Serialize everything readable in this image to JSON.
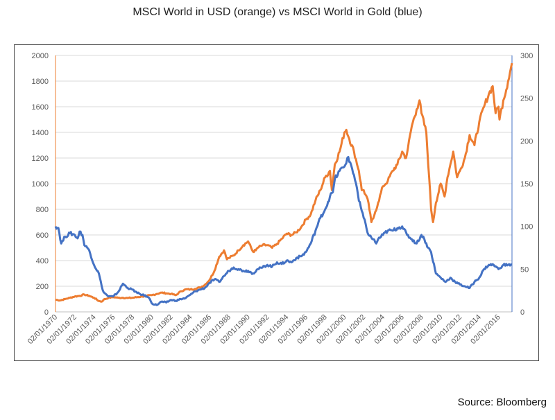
{
  "source": "Source: Bloomberg",
  "colors": {
    "usd": "#ED7D31",
    "gold": "#4472C4",
    "grid": "#D9D9D9",
    "axis": "#BFBFBF"
  },
  "chart_data": {
    "type": "line",
    "title": "MSCI World in USD (orange) vs MSCI World in Gold (blue)",
    "xlabel": "",
    "ylabel": "",
    "xlim": [
      1970.0,
      2017.4
    ],
    "ylim_left": [
      0,
      2000
    ],
    "ylim_right": [
      0,
      300
    ],
    "yticks_left": [
      0,
      200,
      400,
      600,
      800,
      1000,
      1200,
      1400,
      1600,
      1800,
      2000
    ],
    "yticks_right": [
      0,
      50,
      100,
      150,
      200,
      250,
      300
    ],
    "xticks": [
      "02/01/1970",
      "02/01/1972",
      "02/01/1974",
      "02/01/1976",
      "02/01/1978",
      "02/01/1980",
      "02/01/1982",
      "02/01/1984",
      "02/01/1986",
      "02/01/1988",
      "02/01/1990",
      "02/01/1992",
      "02/01/1994",
      "02/01/1996",
      "02/01/1998",
      "02/01/2000",
      "02/01/2002",
      "02/01/2004",
      "02/01/2006",
      "02/01/2008",
      "02/01/2010",
      "02/01/2012",
      "02/01/2014",
      "02/01/2016"
    ],
    "grid": true,
    "legend": "none",
    "series": [
      {
        "axis": "left",
        "color": "#ED7D31",
        "x": [
          1970.0,
          1970.5,
          1971.0,
          1971.5,
          1972.0,
          1972.5,
          1973.0,
          1973.5,
          1974.0,
          1974.5,
          1974.8,
          1975.0,
          1975.5,
          1976.0,
          1976.5,
          1977.0,
          1977.5,
          1978.0,
          1978.5,
          1979.0,
          1979.5,
          1980.0,
          1980.5,
          1981.0,
          1981.5,
          1982.0,
          1982.5,
          1983.0,
          1983.5,
          1984.0,
          1984.5,
          1985.0,
          1985.5,
          1986.0,
          1986.5,
          1987.0,
          1987.5,
          1987.8,
          1988.0,
          1988.5,
          1989.0,
          1989.5,
          1990.0,
          1990.5,
          1990.8,
          1991.0,
          1991.5,
          1992.0,
          1992.5,
          1993.0,
          1993.5,
          1994.0,
          1994.5,
          1995.0,
          1995.5,
          1996.0,
          1996.5,
          1997.0,
          1997.5,
          1998.0,
          1998.5,
          1998.7,
          1999.0,
          1999.5,
          2000.0,
          2000.2,
          2000.5,
          2001.0,
          2001.5,
          2001.8,
          2002.0,
          2002.5,
          2002.8,
          2003.0,
          2003.2,
          2003.5,
          2004.0,
          2004.5,
          2005.0,
          2005.5,
          2006.0,
          2006.4,
          2006.6,
          2007.0,
          2007.5,
          2007.8,
          2008.0,
          2008.5,
          2008.8,
          2009.0,
          2009.2,
          2009.5,
          2010.0,
          2010.4,
          2010.7,
          2011.0,
          2011.3,
          2011.7,
          2012.0,
          2012.5,
          2013.0,
          2013.5,
          2014.0,
          2014.5,
          2015.0,
          2015.4,
          2015.7,
          2016.0,
          2016.1,
          2016.5,
          2017.0,
          2017.4
        ],
        "values": [
          95,
          90,
          100,
          110,
          120,
          125,
          135,
          125,
          110,
          85,
          80,
          95,
          110,
          115,
          110,
          110,
          108,
          110,
          115,
          120,
          125,
          130,
          140,
          150,
          145,
          140,
          130,
          160,
          175,
          175,
          180,
          190,
          210,
          250,
          320,
          430,
          480,
          410,
          420,
          440,
          480,
          520,
          550,
          470,
          480,
          500,
          520,
          520,
          500,
          530,
          570,
          610,
          600,
          620,
          660,
          720,
          760,
          870,
          950,
          1050,
          1100,
          950,
          1150,
          1250,
          1400,
          1420,
          1350,
          1250,
          1100,
          950,
          950,
          850,
          700,
          730,
          780,
          850,
          980,
          1020,
          1100,
          1150,
          1250,
          1200,
          1280,
          1450,
          1580,
          1650,
          1550,
          1400,
          1050,
          800,
          700,
          850,
          1000,
          900,
          1050,
          1150,
          1250,
          1050,
          1100,
          1200,
          1380,
          1300,
          1480,
          1600,
          1700,
          1760,
          1550,
          1600,
          1500,
          1650,
          1800,
          1940
        ]
      },
      {
        "axis": "right",
        "color": "#4472C4",
        "x": [
          1970.0,
          1970.3,
          1970.6,
          1971.0,
          1971.5,
          1972.0,
          1972.3,
          1972.5,
          1972.8,
          1973.0,
          1973.3,
          1973.5,
          1974.0,
          1974.5,
          1974.8,
          1975.0,
          1975.5,
          1976.0,
          1976.5,
          1977.0,
          1977.5,
          1978.0,
          1978.5,
          1979.0,
          1979.5,
          1979.8,
          1980.0,
          1980.5,
          1981.0,
          1981.5,
          1982.0,
          1982.5,
          1983.0,
          1983.5,
          1984.0,
          1984.5,
          1985.0,
          1985.5,
          1986.0,
          1986.5,
          1987.0,
          1987.5,
          1988.0,
          1988.5,
          1989.0,
          1989.5,
          1990.0,
          1990.5,
          1991.0,
          1991.5,
          1992.0,
          1992.5,
          1993.0,
          1993.5,
          1994.0,
          1994.5,
          1995.0,
          1995.5,
          1996.0,
          1996.5,
          1997.0,
          1997.5,
          1998.0,
          1998.5,
          1998.8,
          1999.0,
          1999.5,
          2000.0,
          2000.3,
          2000.6,
          2001.0,
          2001.3,
          2001.5,
          2002.0,
          2002.5,
          2003.0,
          2003.3,
          2003.5,
          2004.0,
          2004.5,
          2005.0,
          2005.5,
          2006.0,
          2006.5,
          2007.0,
          2007.5,
          2008.0,
          2008.3,
          2008.7,
          2009.0,
          2009.5,
          2010.0,
          2010.5,
          2011.0,
          2011.5,
          2012.0,
          2012.5,
          2013.0,
          2013.5,
          2014.0,
          2014.5,
          2015.0,
          2015.5,
          2016.0,
          2016.5,
          2017.0,
          2017.4
        ],
        "values": [
          100,
          98,
          80,
          88,
          92,
          90,
          86,
          94,
          90,
          78,
          75,
          72,
          55,
          45,
          30,
          23,
          18,
          18,
          23,
          33,
          28,
          26,
          22,
          20,
          18,
          15,
          10,
          8,
          12,
          11,
          14,
          13,
          15,
          16,
          20,
          24,
          26,
          28,
          34,
          38,
          35,
          42,
          48,
          52,
          50,
          48,
          48,
          45,
          50,
          52,
          55,
          53,
          58,
          56,
          60,
          58,
          63,
          65,
          70,
          80,
          95,
          110,
          120,
          135,
          140,
          155,
          165,
          170,
          180,
          175,
          160,
          145,
          130,
          110,
          90,
          85,
          80,
          85,
          90,
          95,
          95,
          98,
          100,
          90,
          85,
          80,
          90,
          85,
          75,
          70,
          45,
          40,
          35,
          40,
          35,
          32,
          30,
          28,
          35,
          40,
          50,
          55,
          55,
          50,
          55,
          55,
          55
        ]
      }
    ]
  }
}
